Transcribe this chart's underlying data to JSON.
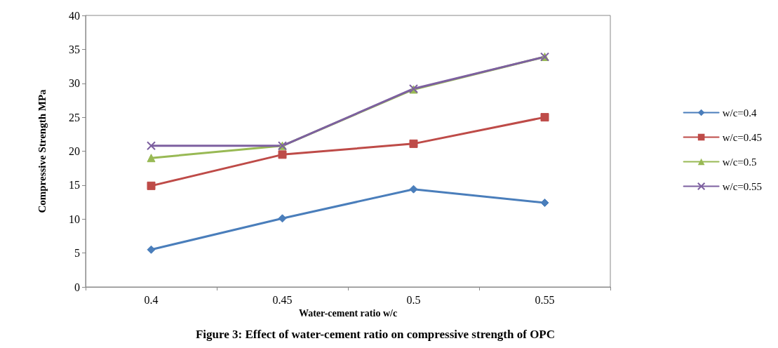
{
  "chart_data": {
    "type": "line",
    "title": "Figure 3: Effect of water-cement ratio on compressive strength of OPC",
    "xlabel": "Water-cement ratio w/c",
    "ylabel": "Compressive Strength MPa",
    "categories": [
      "0.4",
      "0.45",
      "0.5",
      "0.55"
    ],
    "ylim": [
      0,
      40
    ],
    "yticks": [
      0,
      5,
      10,
      15,
      20,
      25,
      30,
      35,
      40
    ],
    "grid": false,
    "legend": "right",
    "line_style": "solid",
    "series": [
      {
        "name": "w/c=0.4",
        "color": "#4a7ebb",
        "marker": "diamond",
        "values": [
          5.5,
          10.1,
          14.4,
          12.4
        ]
      },
      {
        "name": "w/c=0.45",
        "color": "#be4b48",
        "marker": "square",
        "values": [
          14.9,
          19.5,
          21.1,
          25.0
        ]
      },
      {
        "name": "w/c=0.5",
        "color": "#98b954",
        "marker": "triangle",
        "values": [
          19.0,
          20.8,
          29.1,
          33.9
        ]
      },
      {
        "name": "w/c=0.55",
        "color": "#7d60a0",
        "marker": "cross",
        "values": [
          20.8,
          20.8,
          29.2,
          33.9
        ]
      }
    ]
  }
}
